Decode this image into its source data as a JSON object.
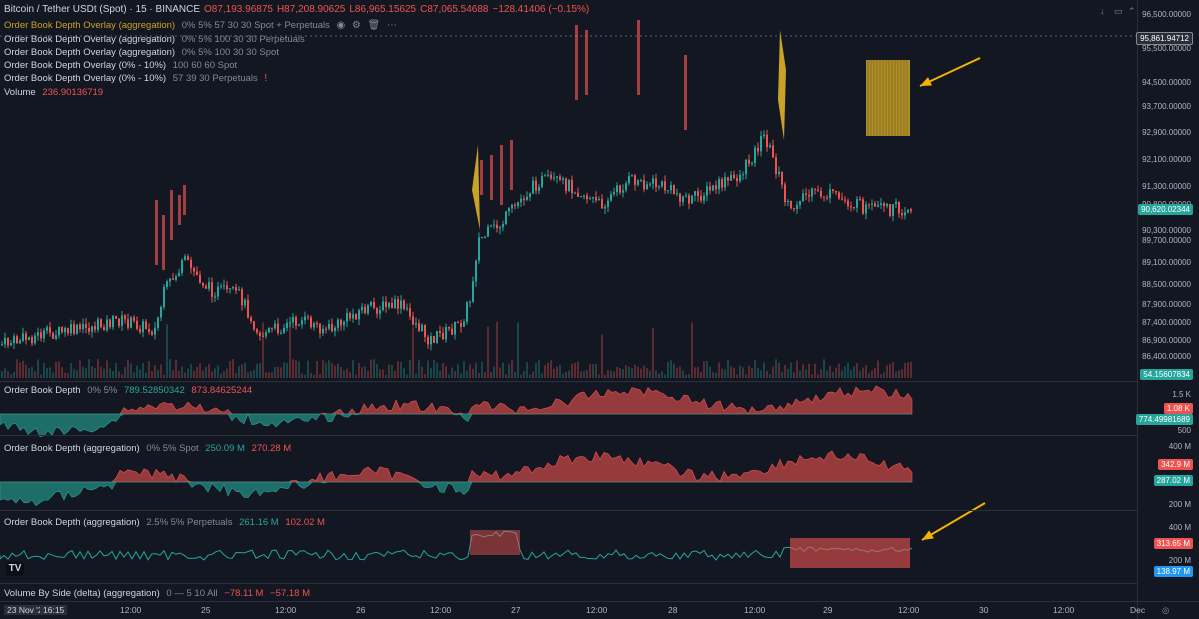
{
  "header": {
    "symbol": "Bitcoin / Tether USDt (Spot) · 15 · BINANCE",
    "o": "O87,193.96875",
    "h": "H87,208.90625",
    "l": "L86,965.15625",
    "c": "C87,065.54688",
    "chg": "−128.41406 (−0.15%)"
  },
  "indicators": [
    {
      "name": "Order Book Depth Overlay (aggregation)",
      "params": "0% 5% 57 30 30 Spot + Perpetuals"
    },
    {
      "name": "Order Book Depth Overlay (aggregation)",
      "params": "0% 5% 100 30 30 Perpetuals"
    },
    {
      "name": "Order Book Depth Overlay (aggregation)",
      "params": "0% 5% 100 30 30 Spot"
    },
    {
      "name": "Order Book Depth Overlay (0% - 10%)",
      "params": "100 60 60 Spot"
    },
    {
      "name": "Order Book Depth Overlay (0% - 10%)",
      "params": "57 39 30 Perpetuals"
    }
  ],
  "volume": {
    "name": "Volume",
    "value": "236.90136719"
  },
  "price_axis": [
    "96,500.00000",
    "95,500.00000",
    "94,500.00000",
    "93,700.00000",
    "92,900.00000",
    "92,100.00000",
    "91,300.00000",
    "90,800.00000",
    "90,300.00000",
    "89,700.00000",
    "89,100.00000",
    "88,500.00000",
    "87,900.00000",
    "87,400.00000",
    "86,900.00000",
    "86,400.00000"
  ],
  "price_tags": {
    "top": "95,861.94712",
    "last": "90,620.02344",
    "vol": "54.15607834"
  },
  "pane1": {
    "title": "Order Book Depth",
    "params": "0% 5%",
    "v1": "789.52850342",
    "v2": "873.84625244",
    "axis": [
      "1.5 K",
      "500"
    ],
    "tag_red": "1.08 K",
    "tag_green": "774.49981689"
  },
  "pane2": {
    "title": "Order Book Depth (aggregation)",
    "params": "0% 5% Spot",
    "v1": "250.09 M",
    "v2": "270.28 M",
    "axis": [
      "400 M",
      "200 M"
    ],
    "tag_red": "342.9 M",
    "tag_green": "287.02 M"
  },
  "pane3": {
    "title": "Order Book Depth (aggregation)",
    "params": "2.5% 5% Perpetuals",
    "v1": "261.16 M",
    "v2": "102.02 M",
    "axis": [
      "400 M",
      "200 M"
    ],
    "tag_red": "313.65 M",
    "tag_blue": "138.97 M"
  },
  "pane4": {
    "title": "Volume By Side (delta) (aggregation)",
    "params": "0 — 5 10 All",
    "v1": "−78.11 M",
    "v2": "−57.18 M"
  },
  "time_axis": [
    "12:00",
    "25",
    "12:00",
    "26",
    "12:00",
    "27",
    "12:00",
    "28",
    "12:00",
    "29",
    "12:00",
    "30",
    "12:00",
    "Dec"
  ],
  "time_cursor": {
    "date": "23 Nov '25",
    "time": "16:15"
  },
  "logo": "TV",
  "colors": {
    "bg": "#131722",
    "up": "#26a69a",
    "down": "#ef5350",
    "heat": "#c9a227",
    "arrow": "#f5b400"
  }
}
